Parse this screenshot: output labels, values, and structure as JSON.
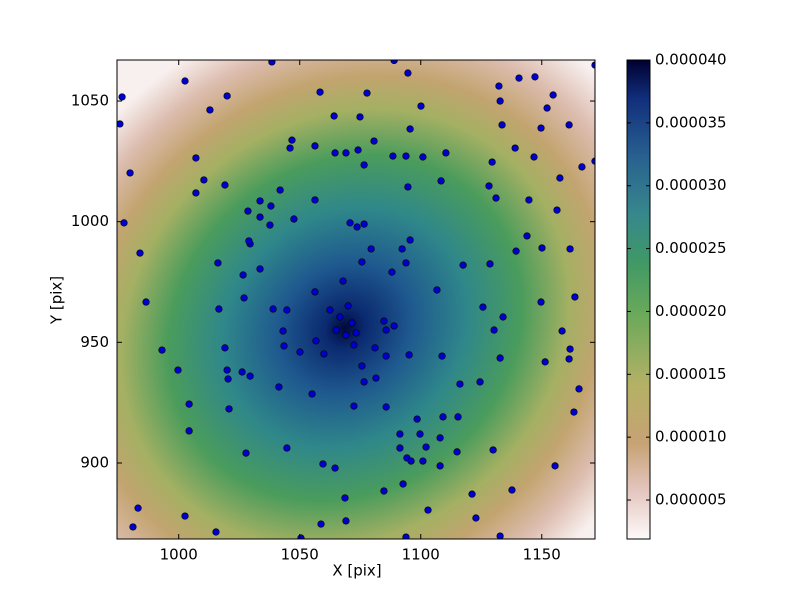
{
  "chart_data": {
    "type": "scatter",
    "x_label": "X [pix]",
    "y_label": "Y [pix]",
    "color": "#0000cc",
    "xlim": [
      974.5,
      1172
    ],
    "ylim": [
      868.5,
      1067
    ],
    "xticks": [
      1000,
      1050,
      1100,
      1150
    ],
    "yticks": [
      900,
      950,
      1000,
      1050
    ],
    "colorbar": {
      "lim": [
        1.9e-06,
        4e-05
      ],
      "ticks": [
        5e-06,
        {
          "value": 1e-05,
          "label": "0.000010"
        },
        1.5e-05,
        {
          "value": 2e-05,
          "label": "0.000020"
        },
        2.5e-05,
        {
          "value": 3e-05,
          "label": "0.000030"
        },
        3.5e-05,
        {
          "value": 4e-05,
          "label": "0.000040"
        }
      ]
    },
    "x": [
      976.6,
      975.7,
      979.9,
      977.4,
      984.0,
      986.5,
      993.1,
      999.7,
      1004.3,
      1004.3,
      983.2,
      981.1,
      1002.6,
      1015.4,
      1027.8,
      1026.2,
      1016.6,
      1019.1,
      1020.0,
      1020.4,
      1020.8,
      1029.5,
      1016.2,
      1019.1,
      1007.1,
      1007.1,
      1010.4,
      1012.9,
      1002.6,
      1020.0,
      1038.5,
      1058.4,
      1064.2,
      1074.9,
      1077.8,
      1046.8,
      1046.0,
      1056.3,
      1064.6,
      1069.1,
      1074.1,
      1080.7,
      1076.6,
      1095.6,
      1100.1,
      1094.7,
      1089.0,
      1088.5,
      1093.9,
      1094.7,
      1100.9,
      1108.4,
      1110.4,
      1132.8,
      1132.3,
      1140.6,
      1147.2,
      1152.2,
      1154.7,
      1161.3,
      1149.7,
      1139.0,
      1133.6,
      1146.8,
      1129.5,
      1128.2,
      1131.1,
      1157.5,
      1166.6,
      1144.7,
      1143.9,
      1139.4,
      1150.1,
      1161.7,
      1156.3,
      1163.7,
      1149.7,
      1158.4,
      1161.7,
      1161.3,
      1151.4,
      1132.8,
      1130.3,
      1134.0,
      1125.7,
      1128.6,
      1117.5,
      1106.7,
      1108.8,
      1116.2,
      1124.5,
      1109.2,
      1108.0,
      1129.9,
      1121.2,
      1122.8,
      1137.7,
      1132.8,
      1155.5,
      1163.3,
      1165.4,
      1028.6,
      1033.6,
      1038.1,
      1041.9,
      1033.6,
      1047.6,
      1056.3,
      1070.8,
      1073.7,
      1076.6,
      1079.5,
      1056.3,
      1056.7,
      1060.0,
      1055.1,
      1050.1,
      1043.1,
      1043.5,
      1041.4,
      1044.7,
      1037.7,
      1029.5,
      1033.6,
      1027.0,
      1039.0,
      1044.7,
      1029.0,
      1026.6,
      1075.7,
      1067.9,
      1070.0,
      1066.6,
      1062.5,
      1065.0,
      1071.6,
      1073.3,
      1069.1,
      1072.4,
      1075.7,
      1076.6,
      1081.5,
      1084.8,
      1085.7,
      1081.1,
      1085.7,
      1088.1,
      1089.0,
      1095.2,
      1093.9,
      1095.6,
      1092.3,
      1072.4,
      1085.7,
      1098.5,
      1099.7,
      1108.0,
      1115.0,
      1091.4,
      1094.3,
      1091.4,
      1115.4,
      1102.2,
      1100.9,
      1096.0,
      1092.7,
      1084.8,
      1103.0,
      1093.9,
      1069.1,
      1064.6,
      1059.6,
      1068.7,
      1058.8,
      1050.5,
      1172.0,
      1172.0
    ],
    "y": [
      1051.7,
      1040.5,
      1020.2,
      999.5,
      987.0,
      966.7,
      946.8,
      938.5,
      924.4,
      913.3,
      881.3,
      873.5,
      878.0,
      871.4,
      904.1,
      937.7,
      963.8,
      947.7,
      938.5,
      934.8,
      922.4,
      936.0,
      982.9,
      1015.2,
      1026.4,
      1011.9,
      1017.3,
      1046.3,
      1058.3,
      1052.1,
      1066.2,
      1053.7,
      1043.8,
      1043.4,
      1053.3,
      1033.8,
      1030.5,
      1031.4,
      1028.5,
      1028.5,
      1029.7,
      1033.4,
      1023.5,
      1038.4,
      1047.9,
      1061.6,
      1066.8,
      1027.2,
      1027.2,
      1014.4,
      1026.8,
      1016.9,
      1028.5,
      1050.0,
      1056.2,
      1059.5,
      1060.0,
      1047.1,
      1052.5,
      1040.1,
      1038.8,
      1030.5,
      1040.1,
      1026.8,
      1024.7,
      1014.8,
      1009.8,
      1018.1,
      1022.7,
      1009.0,
      994.1,
      987.8,
      989.1,
      988.7,
      1004.8,
      968.8,
      966.7,
      954.7,
      947.2,
      943.1,
      941.9,
      943.5,
      955.1,
      960.5,
      964.6,
      982.5,
      982.0,
      971.7,
      944.3,
      932.7,
      933.6,
      919.1,
      898.8,
      905.4,
      887.1,
      877.2,
      888.8,
      869.7,
      898.8,
      921.1,
      930.7,
      1004.4,
      1008.6,
      1006.5,
      1013.1,
      1001.9,
      1001.1,
      1009.0,
      999.5,
      997.8,
      999.0,
      988.7,
      970.9,
      950.6,
      945.2,
      928.6,
      946.0,
      954.7,
      948.5,
      931.5,
      906.2,
      998.6,
      990.8,
      980.4,
      968.4,
      963.8,
      963.4,
      992.0,
      977.9,
      983.3,
      975.4,
      965.1,
      960.5,
      963.4,
      955.1,
      958.0,
      953.9,
      953.0,
      948.9,
      940.2,
      933.6,
      935.2,
      958.8,
      955.1,
      947.7,
      944.3,
      979.1,
      956.8,
      944.8,
      982.9,
      992.4,
      988.7,
      923.6,
      923.2,
      918.2,
      912.0,
      910.4,
      904.6,
      912.0,
      902.1,
      906.2,
      919.1,
      906.6,
      900.8,
      900.8,
      891.3,
      888.4,
      880.5,
      869.3,
      876.0,
      897.9,
      899.6,
      885.5,
      874.7,
      868.9,
      1064.9,
      1025.1
    ]
  }
}
